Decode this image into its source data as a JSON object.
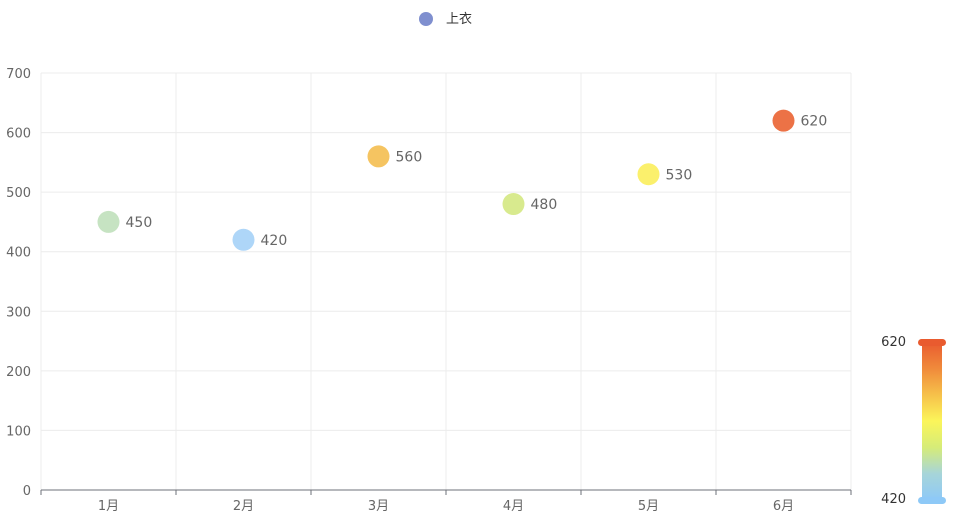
{
  "legend": {
    "label": "上衣",
    "marker_color": "#7f8fcf"
  },
  "visual_map": {
    "max_label": "620",
    "min_label": "420",
    "min": 420,
    "max": 620,
    "colors": [
      "#e95b2f",
      "#f08a3b",
      "#f6c04a",
      "#fbf55a",
      "#d6ec78",
      "#a7d5d9",
      "#8ec9f7"
    ]
  },
  "chart_data": {
    "type": "scatter",
    "categories": [
      "1月",
      "2月",
      "3月",
      "4月",
      "5月",
      "6月"
    ],
    "series": [
      {
        "name": "上衣",
        "values": [
          450,
          420,
          560,
          480,
          530,
          620
        ],
        "labels": [
          "450",
          "420",
          "560",
          "480",
          "530",
          "620"
        ],
        "colors": [
          "#c6e3c2",
          "#aed6f8",
          "#f5c461",
          "#d8ea8e",
          "#fbf06c",
          "#ec7246"
        ]
      }
    ],
    "y_ticks": [
      "0",
      "100",
      "200",
      "300",
      "400",
      "500",
      "600",
      "700"
    ],
    "ylim": [
      0,
      700
    ],
    "grid": true,
    "legend_position": "top-center"
  }
}
